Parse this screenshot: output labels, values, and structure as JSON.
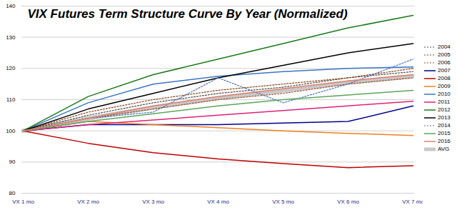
{
  "chart_data": {
    "type": "line",
    "title": "VIX Futures Term Structure Curve By Year (Normalized)",
    "categories": [
      "VX 1 mo",
      "VX 2 mo",
      "VX 3 mo",
      "VX 4 mo",
      "VX 5 mo",
      "VX 6 mo",
      "VX 7 mo"
    ],
    "ylim": [
      80,
      140
    ],
    "yticks": [
      80,
      90,
      100,
      110,
      120,
      130,
      140
    ],
    "grid": true,
    "legend": "right",
    "series": [
      {
        "name": "2004",
        "color": "#4a4a4a",
        "line_style": "dotted",
        "values": [
          100,
          105,
          109,
          112,
          114,
          117,
          119
        ]
      },
      {
        "name": "2005",
        "color": "#8b4513",
        "line_style": "dotted",
        "values": [
          100,
          106,
          110,
          113,
          115,
          117,
          120
        ]
      },
      {
        "name": "2006",
        "color": "#a0522d",
        "line_style": "dotted",
        "values": [
          100,
          104,
          107,
          110,
          112,
          115,
          117
        ]
      },
      {
        "name": "2007",
        "color": "#00008b",
        "line_style": "solid",
        "values": [
          100,
          102,
          102,
          102,
          102.5,
          103,
          108
        ]
      },
      {
        "name": "2008",
        "color": "#c00000",
        "line_style": "solid",
        "values": [
          100,
          96,
          93,
          91,
          89.5,
          88.2,
          88.8
        ]
      },
      {
        "name": "2009",
        "color": "#f08020",
        "line_style": "solid",
        "values": [
          100,
          103,
          102,
          101,
          100,
          99.2,
          98.5
        ]
      },
      {
        "name": "2010",
        "color": "#3a75c4",
        "line_style": "solid",
        "values": [
          100,
          109,
          115,
          117.5,
          119,
          120,
          120.5
        ]
      },
      {
        "name": "2011",
        "color": "#e0207a",
        "line_style": "solid",
        "values": [
          100,
          102,
          103.5,
          105,
          106.5,
          108,
          109.5
        ]
      },
      {
        "name": "2012",
        "color": "#1a7a1a",
        "line_style": "solid",
        "values": [
          100,
          111,
          118,
          123,
          128,
          133,
          137
        ]
      },
      {
        "name": "2013",
        "color": "#000000",
        "line_style": "solid",
        "values": [
          100,
          107,
          112,
          117,
          121,
          125,
          128
        ]
      },
      {
        "name": "2014",
        "color": "#4a6fbf",
        "line_style": "dotted",
        "values": [
          100,
          104,
          106,
          117,
          109,
          115,
          123
        ]
      },
      {
        "name": "2015",
        "color": "#5aa55a",
        "line_style": "solid",
        "values": [
          100,
          103,
          105.5,
          108,
          110,
          111.5,
          113
        ]
      },
      {
        "name": "2016",
        "color": "#e08070",
        "line_style": "solid",
        "values": [
          100,
          104,
          108,
          111,
          113.5,
          116,
          118
        ]
      },
      {
        "name": "AVG",
        "color": "#c8c8c8",
        "line_style": "thick",
        "values": [
          100,
          104,
          107.5,
          110.5,
          113,
          115.5,
          117.5
        ]
      }
    ]
  }
}
